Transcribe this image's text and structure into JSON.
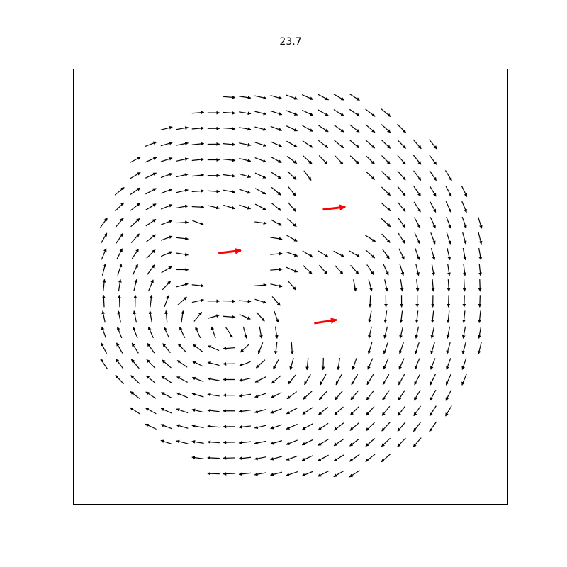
{
  "chart_data": {
    "type": "quiver",
    "title": "23.7",
    "xlim": [
      -1,
      1
    ],
    "ylim": [
      -1,
      1
    ],
    "sources": {
      "color": "#ff0000",
      "x": [
        -0.28,
        0.2,
        0.16
      ],
      "y": [
        0.16,
        0.36,
        -0.16
      ],
      "u": [
        1,
        1,
        1
      ],
      "v": [
        0.12,
        0.12,
        0.15
      ]
    },
    "field_color": "#000000"
  }
}
